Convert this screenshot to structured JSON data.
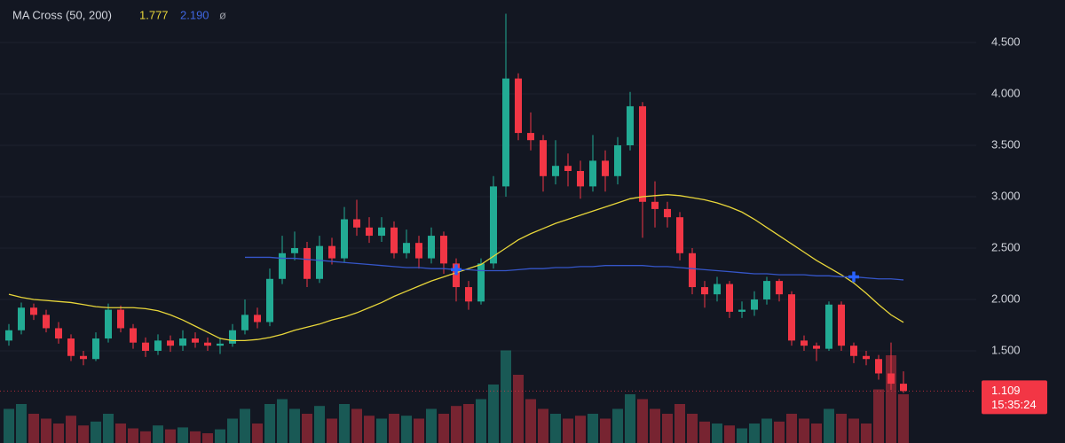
{
  "chart_data": {
    "type": "candlestick",
    "legend_title": "MA Cross (50, 200)",
    "legend_symbol": "ø",
    "up_color": "#22ab94",
    "down_color": "#f23645",
    "open": [
      1.6,
      1.7,
      1.92,
      1.85,
      1.72,
      1.62,
      1.45,
      1.42,
      1.62,
      1.9,
      1.72,
      1.58,
      1.5,
      1.6,
      1.55,
      1.62,
      1.58,
      1.55,
      1.57,
      1.7,
      1.85,
      1.78,
      2.2,
      2.45,
      2.5,
      2.2,
      2.52,
      2.4,
      2.78,
      2.7,
      2.62,
      2.7,
      2.45,
      2.55,
      2.4,
      2.62,
      2.35,
      2.12,
      1.98,
      2.35,
      3.1,
      4.15,
      3.62,
      3.55,
      3.2,
      3.3,
      3.25,
      3.1,
      3.35,
      3.2,
      3.5,
      3.88,
      2.95,
      2.88,
      2.8,
      2.45,
      2.12,
      2.05,
      2.15,
      1.88,
      1.9,
      2.0,
      2.18,
      2.05,
      1.6,
      1.55,
      1.52,
      1.95,
      1.55,
      1.45,
      1.42,
      1.28,
      1.18
    ],
    "high": [
      1.76,
      1.97,
      1.96,
      1.9,
      1.78,
      1.66,
      1.5,
      1.68,
      1.96,
      1.94,
      1.76,
      1.63,
      1.66,
      1.65,
      1.7,
      1.68,
      1.63,
      1.63,
      1.76,
      2.0,
      1.92,
      2.3,
      2.62,
      2.66,
      2.56,
      2.62,
      2.6,
      2.9,
      2.97,
      2.8,
      2.8,
      2.76,
      2.68,
      2.62,
      2.7,
      2.66,
      2.4,
      2.18,
      2.4,
      3.2,
      4.78,
      4.2,
      3.82,
      3.6,
      3.55,
      3.42,
      3.35,
      3.6,
      3.45,
      3.58,
      4.02,
      3.92,
      3.15,
      2.95,
      2.85,
      2.5,
      2.18,
      2.22,
      2.18,
      1.98,
      2.08,
      2.22,
      2.2,
      2.08,
      1.65,
      1.58,
      1.98,
      1.98,
      1.58,
      1.5,
      1.46,
      1.58,
      1.3
    ],
    "low": [
      1.55,
      1.66,
      1.8,
      1.68,
      1.57,
      1.4,
      1.36,
      1.4,
      1.58,
      1.68,
      1.52,
      1.44,
      1.46,
      1.49,
      1.5,
      1.53,
      1.5,
      1.47,
      1.54,
      1.66,
      1.72,
      1.74,
      2.15,
      2.38,
      2.12,
      2.16,
      2.34,
      2.36,
      2.62,
      2.55,
      2.56,
      2.4,
      2.4,
      2.3,
      2.35,
      2.25,
      1.98,
      1.9,
      1.95,
      2.3,
      3.0,
      3.55,
      3.45,
      3.05,
      3.12,
      3.1,
      2.98,
      3.05,
      3.05,
      3.12,
      3.45,
      2.6,
      2.7,
      2.7,
      2.38,
      2.05,
      1.92,
      1.98,
      1.82,
      1.82,
      1.84,
      1.95,
      1.98,
      1.55,
      1.5,
      1.4,
      1.5,
      1.5,
      1.38,
      1.36,
      1.22,
      1.12,
      1.09
    ],
    "close": [
      1.7,
      1.92,
      1.85,
      1.72,
      1.62,
      1.45,
      1.42,
      1.62,
      1.9,
      1.72,
      1.58,
      1.5,
      1.6,
      1.55,
      1.62,
      1.58,
      1.55,
      1.57,
      1.7,
      1.85,
      1.78,
      2.2,
      2.45,
      2.5,
      2.2,
      2.52,
      2.4,
      2.78,
      2.7,
      2.62,
      2.7,
      2.45,
      2.55,
      2.4,
      2.62,
      2.35,
      2.12,
      1.98,
      2.35,
      3.1,
      4.15,
      3.62,
      3.55,
      3.2,
      3.3,
      3.25,
      3.1,
      3.35,
      3.2,
      3.5,
      3.88,
      2.95,
      2.88,
      2.8,
      2.45,
      2.12,
      2.05,
      2.15,
      1.88,
      1.9,
      2.0,
      2.18,
      2.05,
      1.6,
      1.55,
      1.52,
      1.95,
      1.55,
      1.45,
      1.42,
      1.28,
      1.18,
      1.109
    ],
    "volume": [
      35,
      40,
      30,
      25,
      20,
      28,
      18,
      22,
      30,
      20,
      15,
      12,
      18,
      14,
      16,
      12,
      10,
      14,
      25,
      35,
      20,
      40,
      45,
      35,
      30,
      38,
      25,
      40,
      35,
      28,
      25,
      30,
      28,
      25,
      35,
      30,
      38,
      40,
      45,
      60,
      95,
      70,
      45,
      35,
      30,
      25,
      28,
      30,
      25,
      35,
      50,
      45,
      35,
      30,
      40,
      30,
      22,
      20,
      18,
      15,
      20,
      25,
      22,
      30,
      25,
      20,
      35,
      30,
      25,
      20,
      55,
      90,
      50
    ],
    "volume_lim": [
      0,
      100
    ],
    "series": [
      {
        "color": "#e8d63a",
        "values": [
          2.05,
          2.02,
          2.0,
          1.99,
          1.98,
          1.97,
          1.95,
          1.93,
          1.92,
          1.92,
          1.92,
          1.91,
          1.89,
          1.85,
          1.8,
          1.74,
          1.68,
          1.62,
          1.6,
          1.6,
          1.61,
          1.63,
          1.66,
          1.7,
          1.73,
          1.76,
          1.8,
          1.83,
          1.87,
          1.92,
          1.97,
          2.03,
          2.08,
          2.13,
          2.18,
          2.22,
          2.26,
          2.3,
          2.34,
          2.42,
          2.5,
          2.58,
          2.64,
          2.69,
          2.74,
          2.78,
          2.82,
          2.86,
          2.9,
          2.94,
          2.98,
          3.0,
          3.01,
          3.02,
          3.01,
          2.99,
          2.97,
          2.94,
          2.9,
          2.85,
          2.78,
          2.7,
          2.62,
          2.54,
          2.46,
          2.38,
          2.31,
          2.24,
          2.16,
          2.06,
          1.95,
          1.85,
          1.777
        ]
      },
      {
        "color": "#3556c9",
        "last_label": "2.190",
        "values": [
          null,
          null,
          null,
          null,
          null,
          null,
          null,
          null,
          null,
          null,
          null,
          null,
          null,
          null,
          null,
          null,
          null,
          null,
          null,
          2.41,
          2.41,
          2.41,
          2.4,
          2.4,
          2.39,
          2.38,
          2.37,
          2.36,
          2.35,
          2.34,
          2.33,
          2.32,
          2.31,
          2.31,
          2.3,
          2.3,
          2.29,
          2.29,
          2.28,
          2.28,
          2.28,
          2.29,
          2.3,
          2.3,
          2.31,
          2.31,
          2.32,
          2.32,
          2.33,
          2.33,
          2.33,
          2.33,
          2.32,
          2.32,
          2.31,
          2.3,
          2.29,
          2.28,
          2.27,
          2.26,
          2.25,
          2.25,
          2.24,
          2.24,
          2.24,
          2.23,
          2.23,
          2.22,
          2.22,
          2.21,
          2.2,
          2.2,
          2.19
        ]
      }
    ],
    "crosses": [
      {
        "index": 36,
        "value": 2.29
      },
      {
        "index": 68,
        "value": 2.22
      }
    ],
    "cross_color": "#2962ff",
    "last_price": 1.109,
    "countdown": "15:35:24",
    "ylim": [
      0.603,
      4.914
    ],
    "yticks": [
      {
        "value": 1.5,
        "label": "1.500"
      },
      {
        "value": 2.0,
        "label": "2.000"
      },
      {
        "value": 2.5,
        "label": "2.500"
      },
      {
        "value": 3.0,
        "label": "3.000"
      },
      {
        "value": 3.5,
        "label": "3.500"
      },
      {
        "value": 4.0,
        "label": "4.000"
      },
      {
        "value": 4.5,
        "label": "4.500"
      }
    ],
    "grid": true
  }
}
